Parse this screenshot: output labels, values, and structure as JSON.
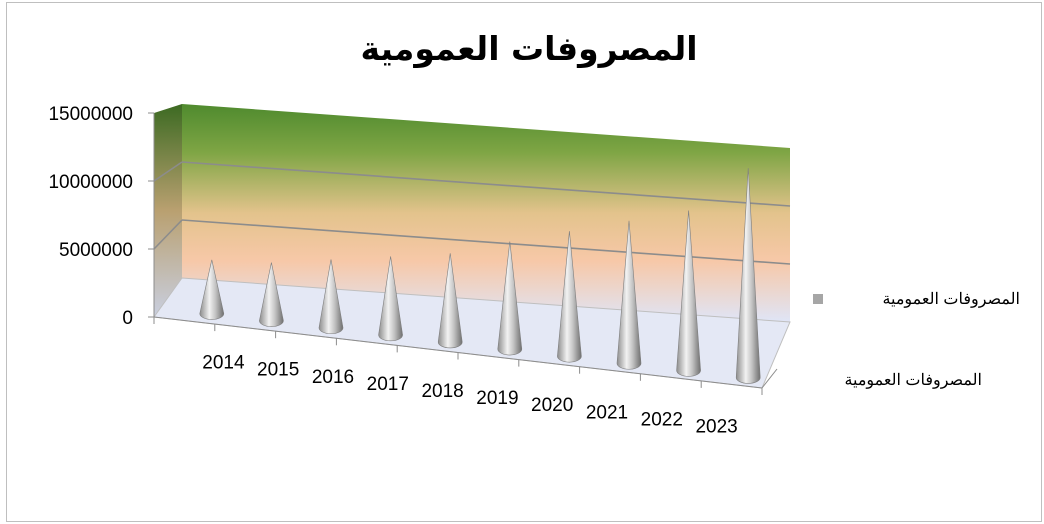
{
  "chart_data": {
    "type": "bar",
    "style": "3d-cone",
    "title": "المصروفات العمومية",
    "categories": [
      "2014",
      "2015",
      "2016",
      "2017",
      "2018",
      "2019",
      "2020",
      "2021",
      "2022",
      "2023"
    ],
    "series": [
      {
        "name": "المصروفات العمومية",
        "values": [
          3700000,
          4000000,
          4700000,
          5400000,
          6100000,
          7400000,
          8600000,
          9800000,
          11000000,
          14400000
        ]
      }
    ],
    "ylim": [
      0,
      15000000
    ],
    "yticks": [
      "15000000",
      "10000000",
      "5000000",
      "0"
    ],
    "depth_label": "المصروفات العمومية",
    "legend": {
      "position": "right",
      "entries": [
        "المصروفات العمومية"
      ]
    },
    "grid": true,
    "colors": {
      "wall_top": "#4f8a2e",
      "wall_mid": "#f5c9a6",
      "wall_bottom": "#dfe5f7",
      "cone": "#b5b5b5",
      "marker": "#a6a6a6"
    }
  }
}
